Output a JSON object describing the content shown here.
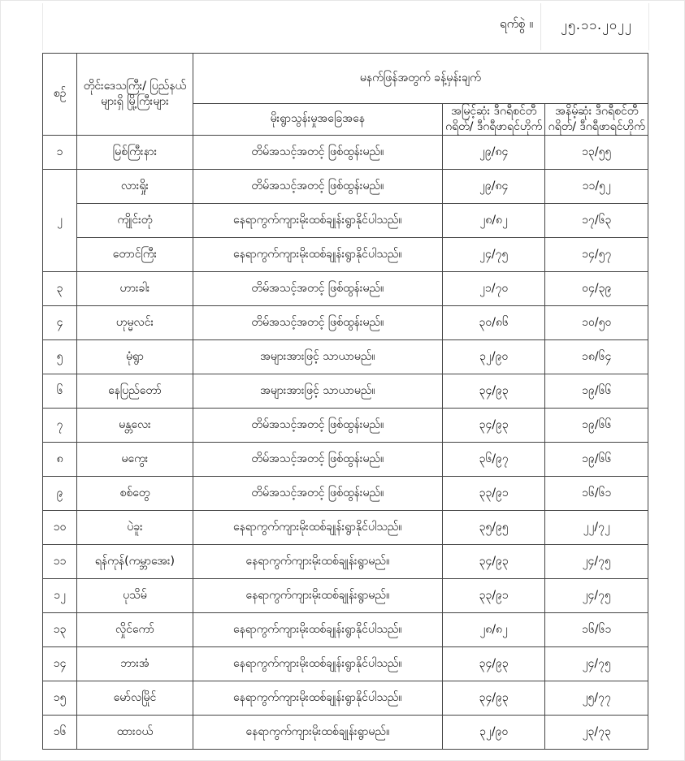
{
  "date_label": "ရက်စွဲ ။",
  "date_value": "၂၅.၁၁.၂၀၂၂",
  "headers": {
    "no": "စဉ်",
    "city": "တိုင်းဒေသကြီး/ ပြည်နယ်များရှိ မြို့ကြီးများ",
    "forecast": "မနက်ဖြန်အတွက် ခန့်မှန်းချက်",
    "condition": "မိုးရွာသွန်းမှုအခြေအနေ",
    "max": "အမြင့်ဆုံး ဒီဂရီစင်တီဂရိတ်/ ဒီဂရီဖာရင်ဟိုက်",
    "min": "အနိမ့်ဆုံး ဒီဂရီစင်တီဂရိတ်/ ဒီဂရီဖာရင်ဟိုက်"
  },
  "rows": [
    {
      "no": "၁",
      "city": "မြစ်ကြီးနား",
      "condition": "တိမ်အသင့်အတင့် ဖြစ်ထွန်းမည်။",
      "max": "၂၉/၈၄",
      "min": "၁၃/၅၅"
    },
    {
      "no": "၂",
      "city": "လားရှိုး",
      "condition": "တိမ်အသင့်အတင့် ဖြစ်ထွန်းမည်။",
      "max": "၂၉/၈၄",
      "min": "၁၁/၅၂"
    },
    {
      "no": "",
      "city": "ကျိုင်းတုံ",
      "condition": "နေရာကွက်ကျားမိုးထစ်ချုန်းရွာနိုင်ပါသည်။",
      "max": "၂၈/၈၂",
      "min": "၁၇/၆၃"
    },
    {
      "no": "",
      "city": "တောင်ကြီး",
      "condition": "နေရာကွက်ကျားမိုးထစ်ချုန်းရွာနိုင်ပါသည်။",
      "max": "၂၄/၇၅",
      "min": "၁၄/၅၇"
    },
    {
      "no": "၃",
      "city": "ဟားခါး",
      "condition": "တိမ်အသင့်အတင့် ဖြစ်ထွန်းမည်။",
      "max": "၂၁/၇၀",
      "min": "၀၄/၃၉"
    },
    {
      "no": "၄",
      "city": "ဟုမ္မလင်း",
      "condition": "တိမ်အသင့်အတင့် ဖြစ်ထွန်းမည်။",
      "max": "၃၀/၈၆",
      "min": "၁၀/၅၀"
    },
    {
      "no": "၅",
      "city": "မုံရွာ",
      "condition": "အများအားဖြင့် သာယာမည်။",
      "max": "၃၂/၉၀",
      "min": "၁၈/၆၄"
    },
    {
      "no": "၆",
      "city": "နေပြည်တော်",
      "condition": "အများအားဖြင့် သာယာမည်။",
      "max": "၃၄/၉၃",
      "min": "၁၉/၆၆"
    },
    {
      "no": "၇",
      "city": "မန္တလေး",
      "condition": "တိမ်အသင့်အတင့် ဖြစ်ထွန်းမည်။",
      "max": "၃၄/၉၃",
      "min": "၁၉/၆၆"
    },
    {
      "no": "၈",
      "city": "မကွေး",
      "condition": "တိမ်အသင့်အတင့် ဖြစ်ထွန်းမည်။",
      "max": "၃၆/၉၇",
      "min": "၁၉/၆၆"
    },
    {
      "no": "၉",
      "city": "စစ်တွေ",
      "condition": "တိမ်အသင့်အတင့် ဖြစ်ထွန်းမည်။",
      "max": "၃၃/၉၁",
      "min": "၁၆/၆၁"
    },
    {
      "no": "၁၀",
      "city": "ပဲခူး",
      "condition": "နေရာကွက်ကျားမိုးထစ်ချုန်းရွာနိုင်ပါသည်။",
      "max": "၃၅/၉၅",
      "min": "၂၂/၇၂"
    },
    {
      "no": "၁၁",
      "city": "ရန်ကုန်(ကမ္ဘာအေး)",
      "condition": "နေရာကွက်ကျားမိုးထစ်ချုန်းရွာမည်။",
      "max": "၃၄/၉၃",
      "min": "၂၄/၇၅"
    },
    {
      "no": "၁၂",
      "city": "ပုသိမ်",
      "condition": "နေရာကွက်ကျားမိုးထစ်ချုန်းရွာမည်။",
      "max": "၃၃/၉၁",
      "min": "၂၄/၇၅"
    },
    {
      "no": "၁၃",
      "city": "လှိုင်ကော်",
      "condition": "နေရာကွက်ကျားမိုးထစ်ချုန်းရွာနိုင်ပါသည်။",
      "max": "၂၈/၈၂",
      "min": "၁၆/၆၁"
    },
    {
      "no": "၁၄",
      "city": "ဘားအံ",
      "condition": "နေရာကွက်ကျားမိုးထစ်ချုန်းရွာနိုင်ပါသည်။",
      "max": "၃၄/၉၃",
      "min": "၂၄/၇၅"
    },
    {
      "no": "၁၅",
      "city": "မော်လမြိုင်",
      "condition": "နေရာကွက်ကျားမိုးထစ်ချုန်းရွာနိုင်ပါသည်။",
      "max": "၃၄/၉၃",
      "min": "၂၅/၇၇"
    },
    {
      "no": "၁၆",
      "city": "ထားဝယ်",
      "condition": "နေရာကွက်ကျားမိုးထစ်ချုန်းရွာမည်။",
      "max": "၃၂/၉၀",
      "min": "၂၃/၇၃"
    }
  ]
}
